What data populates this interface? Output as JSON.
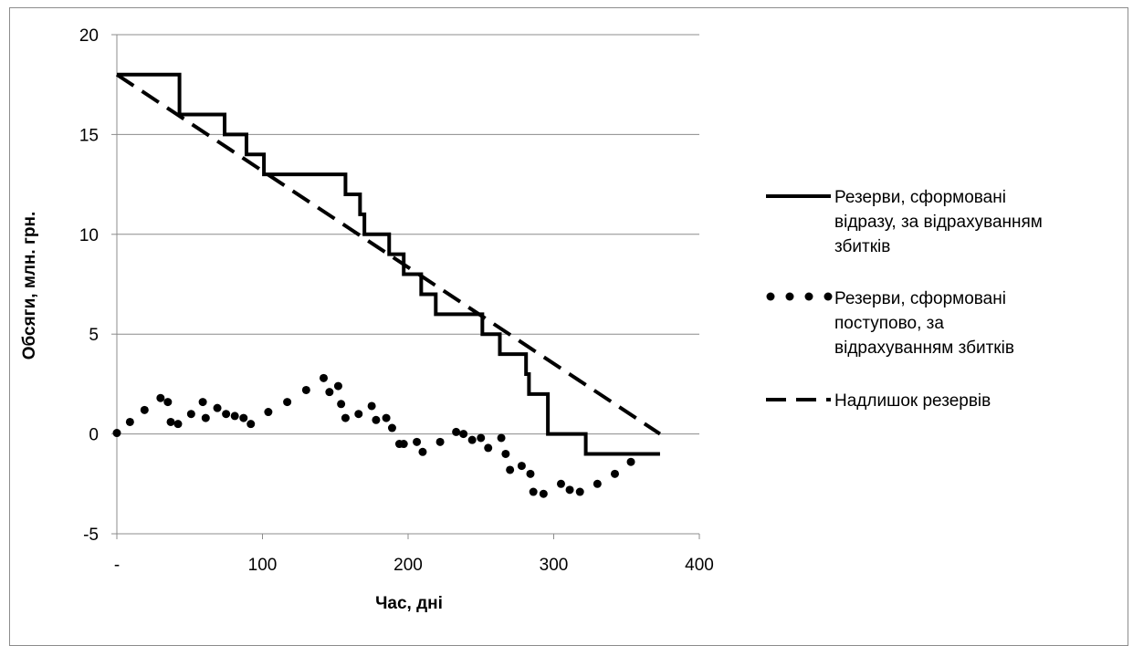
{
  "chart_data": {
    "type": "line",
    "xlabel": "Час, дні",
    "ylabel": "Обсяги, млн. грн.",
    "xlim": [
      0,
      400
    ],
    "ylim": [
      -5,
      20
    ],
    "x_ticks": [
      "-",
      "100",
      "200",
      "300",
      "400"
    ],
    "y_ticks": [
      "20",
      "15",
      "10",
      "5",
      "0",
      "-5"
    ],
    "grid": "horizontal",
    "legend_position": "right",
    "series": [
      {
        "name": "Резерви, сформовані відразу, за відрахуванням збитків",
        "style": "solid",
        "points": [
          [
            0,
            18
          ],
          [
            43,
            18
          ],
          [
            43,
            16
          ],
          [
            74,
            16
          ],
          [
            74,
            15
          ],
          [
            89,
            15
          ],
          [
            89,
            14
          ],
          [
            101,
            14
          ],
          [
            101,
            13
          ],
          [
            157,
            13
          ],
          [
            157,
            12
          ],
          [
            167,
            12
          ],
          [
            167,
            11
          ],
          [
            170,
            11
          ],
          [
            170,
            10
          ],
          [
            187,
            10
          ],
          [
            187,
            9
          ],
          [
            197,
            9
          ],
          [
            197,
            8
          ],
          [
            209,
            8
          ],
          [
            209,
            7
          ],
          [
            219,
            7
          ],
          [
            219,
            6
          ],
          [
            251,
            6
          ],
          [
            251,
            5
          ],
          [
            263,
            5
          ],
          [
            263,
            4
          ],
          [
            281,
            4
          ],
          [
            281,
            3
          ],
          [
            283,
            3
          ],
          [
            283,
            2
          ],
          [
            296,
            2
          ],
          [
            296,
            0
          ],
          [
            322,
            0
          ],
          [
            322,
            -1
          ],
          [
            373,
            -1
          ]
        ]
      },
      {
        "name": "Резерви, сформовані поступово, за відрахуванням збитків",
        "style": "dotted",
        "points": [
          [
            0,
            0.05
          ],
          [
            9,
            0.6
          ],
          [
            19,
            1.2
          ],
          [
            30,
            1.8
          ],
          [
            35,
            1.6
          ],
          [
            37,
            0.6
          ],
          [
            42,
            0.5
          ],
          [
            51,
            1.0
          ],
          [
            59,
            1.6
          ],
          [
            61,
            0.8
          ],
          [
            69,
            1.3
          ],
          [
            75,
            1.0
          ],
          [
            81,
            0.9
          ],
          [
            87,
            0.8
          ],
          [
            92,
            0.5
          ],
          [
            104,
            1.1
          ],
          [
            117,
            1.6
          ],
          [
            130,
            2.2
          ],
          [
            142,
            2.8
          ],
          [
            146,
            2.1
          ],
          [
            152,
            2.4
          ],
          [
            154,
            1.5
          ],
          [
            157,
            0.8
          ],
          [
            166,
            1.0
          ],
          [
            175,
            1.4
          ],
          [
            178,
            0.7
          ],
          [
            185,
            0.8
          ],
          [
            189,
            0.3
          ],
          [
            194,
            -0.5
          ],
          [
            197,
            -0.5
          ],
          [
            206,
            -0.4
          ],
          [
            210,
            -0.9
          ],
          [
            222,
            -0.4
          ],
          [
            233,
            0.1
          ],
          [
            238,
            0.0
          ],
          [
            244,
            -0.3
          ],
          [
            250,
            -0.2
          ],
          [
            255,
            -0.7
          ],
          [
            264,
            -0.2
          ],
          [
            267,
            -1.0
          ],
          [
            270,
            -1.8
          ],
          [
            278,
            -1.6
          ],
          [
            284,
            -2.0
          ],
          [
            286,
            -2.9
          ],
          [
            293,
            -3.0
          ],
          [
            305,
            -2.5
          ],
          [
            311,
            -2.8
          ],
          [
            318,
            -2.9
          ],
          [
            330,
            -2.5
          ],
          [
            342,
            -2.0
          ],
          [
            353,
            -1.4
          ]
        ]
      },
      {
        "name": "Надлишок резервів",
        "style": "dashed",
        "points": [
          [
            0,
            18
          ],
          [
            373,
            0
          ]
        ]
      }
    ]
  },
  "legend": {
    "items": [
      {
        "lines": [
          "Резерви, сформовані",
          "відразу, за відрахуванням",
          "збитків"
        ]
      },
      {
        "lines": [
          "Резерви, сформовані",
          "поступово, за",
          "відрахуванням збитків"
        ]
      },
      {
        "lines": [
          "Надлишок резервів"
        ]
      }
    ]
  }
}
